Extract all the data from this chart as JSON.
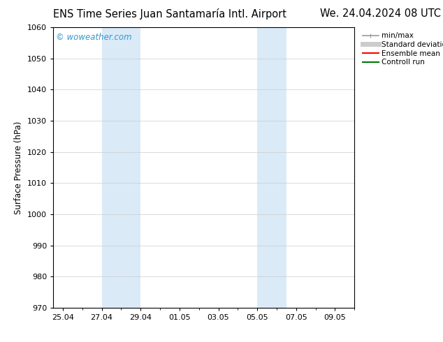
{
  "title_left": "ENS Time Series Juan Santamaría Intl. Airport",
  "title_right": "We. 24.04.2024 08 UTC",
  "ylabel": "Surface Pressure (hPa)",
  "ylim": [
    970,
    1060
  ],
  "yticks": [
    970,
    980,
    990,
    1000,
    1010,
    1020,
    1030,
    1040,
    1050,
    1060
  ],
  "xtick_labels": [
    "25.04",
    "27.04",
    "29.04",
    "01.05",
    "03.05",
    "05.05",
    "07.05",
    "09.05"
  ],
  "xtick_positions": [
    0,
    2,
    4,
    6,
    8,
    10,
    12,
    14
  ],
  "xlim": [
    -0.5,
    15.0
  ],
  "watermark": "© woweather.com",
  "watermark_color": "#3399cc",
  "background_color": "#ffffff",
  "shaded_regions": [
    {
      "xmin": 2,
      "xmax": 4,
      "color": "#daeaf7"
    },
    {
      "xmin": 10,
      "xmax": 11.5,
      "color": "#daeaf7"
    }
  ],
  "legend_items": [
    {
      "label": "min/max",
      "color": "#999999",
      "lw": 1.2
    },
    {
      "label": "Standard deviation",
      "color": "#cccccc",
      "lw": 5
    },
    {
      "label": "Ensemble mean run",
      "color": "#ff0000",
      "lw": 1.5
    },
    {
      "label": "Controll run",
      "color": "#007700",
      "lw": 1.5
    }
  ],
  "grid_color": "#cccccc",
  "grid_lw": 0.5,
  "title_fontsize": 10.5,
  "axis_fontsize": 8.5,
  "tick_fontsize": 8,
  "watermark_fontsize": 8.5,
  "legend_fontsize": 7.5
}
